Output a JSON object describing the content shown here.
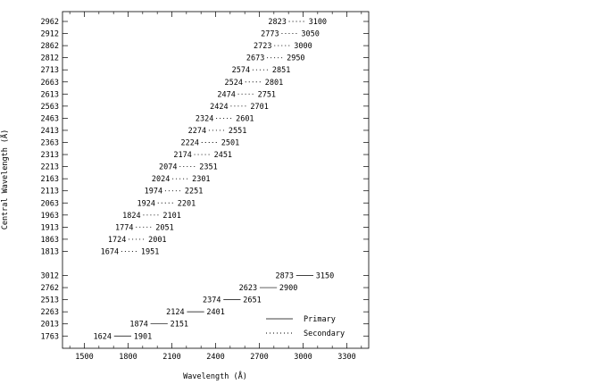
{
  "chart_data": {
    "type": "range-segments",
    "xlabel": "Wavelength (Å)",
    "ylabel": "Central Wavelength (Å)",
    "xlim": [
      1350,
      3450
    ],
    "xticks": [
      1500,
      1800,
      2100,
      2400,
      2700,
      3000,
      3300
    ],
    "grid": false,
    "legend": {
      "placement": "bottom-right",
      "entries": [
        "Primary",
        "Secondary"
      ]
    },
    "series": [
      {
        "name": "Primary",
        "style": "solid",
        "ranges": [
          {
            "central": "1763",
            "start": 1624,
            "end": 1901
          },
          {
            "central": "2013",
            "start": 1874,
            "end": 2151
          },
          {
            "central": "2263",
            "start": 2124,
            "end": 2401
          },
          {
            "central": "2513",
            "start": 2374,
            "end": 2651
          },
          {
            "central": "2762",
            "start": 2623,
            "end": 2900
          },
          {
            "central": "3012",
            "start": 2873,
            "end": 3150
          }
        ]
      },
      {
        "name": "Secondary",
        "style": "dotted",
        "ranges": [
          {
            "central": "1813",
            "start": 1674,
            "end": 1951
          },
          {
            "central": "1863",
            "start": 1724,
            "end": 2001
          },
          {
            "central": "1913",
            "start": 1774,
            "end": 2051
          },
          {
            "central": "1963",
            "start": 1824,
            "end": 2101
          },
          {
            "central": "2063",
            "start": 1924,
            "end": 2201
          },
          {
            "central": "2113",
            "start": 1974,
            "end": 2251
          },
          {
            "central": "2163",
            "start": 2024,
            "end": 2301
          },
          {
            "central": "2213",
            "start": 2074,
            "end": 2351
          },
          {
            "central": "2313",
            "start": 2174,
            "end": 2451
          },
          {
            "central": "2363",
            "start": 2224,
            "end": 2501
          },
          {
            "central": "2413",
            "start": 2274,
            "end": 2551
          },
          {
            "central": "2463",
            "start": 2324,
            "end": 2601
          },
          {
            "central": "2563",
            "start": 2424,
            "end": 2701
          },
          {
            "central": "2613",
            "start": 2474,
            "end": 2751
          },
          {
            "central": "2663",
            "start": 2524,
            "end": 2801
          },
          {
            "central": "2713",
            "start": 2574,
            "end": 2851
          },
          {
            "central": "2812",
            "start": 2673,
            "end": 2950
          },
          {
            "central": "2862",
            "start": 2723,
            "end": 3000
          },
          {
            "central": "2912",
            "start": 2773,
            "end": 3050
          },
          {
            "central": "2962",
            "start": 2823,
            "end": 3100
          }
        ]
      }
    ]
  }
}
